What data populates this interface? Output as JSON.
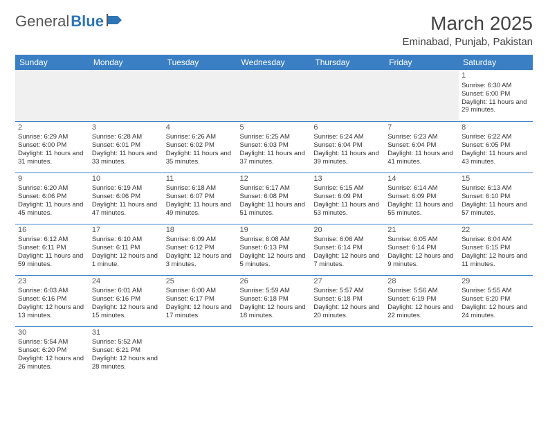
{
  "logo": {
    "text1": "General",
    "text2": "Blue"
  },
  "title": "March 2025",
  "location": "Eminabad, Punjab, Pakistan",
  "colors": {
    "header_bg": "#3a7fc4",
    "header_text": "#ffffff",
    "logo_gray": "#555555",
    "logo_blue": "#2e75b6",
    "cell_border": "#3a7fc4",
    "empty_bg": "#f0f0f0"
  },
  "day_headers": [
    "Sunday",
    "Monday",
    "Tuesday",
    "Wednesday",
    "Thursday",
    "Friday",
    "Saturday"
  ],
  "weeks": [
    [
      null,
      null,
      null,
      null,
      null,
      null,
      {
        "n": "1",
        "sr": "Sunrise: 6:30 AM",
        "ss": "Sunset: 6:00 PM",
        "dl": "Daylight: 11 hours and 29 minutes."
      }
    ],
    [
      {
        "n": "2",
        "sr": "Sunrise: 6:29 AM",
        "ss": "Sunset: 6:00 PM",
        "dl": "Daylight: 11 hours and 31 minutes."
      },
      {
        "n": "3",
        "sr": "Sunrise: 6:28 AM",
        "ss": "Sunset: 6:01 PM",
        "dl": "Daylight: 11 hours and 33 minutes."
      },
      {
        "n": "4",
        "sr": "Sunrise: 6:26 AM",
        "ss": "Sunset: 6:02 PM",
        "dl": "Daylight: 11 hours and 35 minutes."
      },
      {
        "n": "5",
        "sr": "Sunrise: 6:25 AM",
        "ss": "Sunset: 6:03 PM",
        "dl": "Daylight: 11 hours and 37 minutes."
      },
      {
        "n": "6",
        "sr": "Sunrise: 6:24 AM",
        "ss": "Sunset: 6:04 PM",
        "dl": "Daylight: 11 hours and 39 minutes."
      },
      {
        "n": "7",
        "sr": "Sunrise: 6:23 AM",
        "ss": "Sunset: 6:04 PM",
        "dl": "Daylight: 11 hours and 41 minutes."
      },
      {
        "n": "8",
        "sr": "Sunrise: 6:22 AM",
        "ss": "Sunset: 6:05 PM",
        "dl": "Daylight: 11 hours and 43 minutes."
      }
    ],
    [
      {
        "n": "9",
        "sr": "Sunrise: 6:20 AM",
        "ss": "Sunset: 6:06 PM",
        "dl": "Daylight: 11 hours and 45 minutes."
      },
      {
        "n": "10",
        "sr": "Sunrise: 6:19 AM",
        "ss": "Sunset: 6:06 PM",
        "dl": "Daylight: 11 hours and 47 minutes."
      },
      {
        "n": "11",
        "sr": "Sunrise: 6:18 AM",
        "ss": "Sunset: 6:07 PM",
        "dl": "Daylight: 11 hours and 49 minutes."
      },
      {
        "n": "12",
        "sr": "Sunrise: 6:17 AM",
        "ss": "Sunset: 6:08 PM",
        "dl": "Daylight: 11 hours and 51 minutes."
      },
      {
        "n": "13",
        "sr": "Sunrise: 6:15 AM",
        "ss": "Sunset: 6:09 PM",
        "dl": "Daylight: 11 hours and 53 minutes."
      },
      {
        "n": "14",
        "sr": "Sunrise: 6:14 AM",
        "ss": "Sunset: 6:09 PM",
        "dl": "Daylight: 11 hours and 55 minutes."
      },
      {
        "n": "15",
        "sr": "Sunrise: 6:13 AM",
        "ss": "Sunset: 6:10 PM",
        "dl": "Daylight: 11 hours and 57 minutes."
      }
    ],
    [
      {
        "n": "16",
        "sr": "Sunrise: 6:12 AM",
        "ss": "Sunset: 6:11 PM",
        "dl": "Daylight: 11 hours and 59 minutes."
      },
      {
        "n": "17",
        "sr": "Sunrise: 6:10 AM",
        "ss": "Sunset: 6:11 PM",
        "dl": "Daylight: 12 hours and 1 minute."
      },
      {
        "n": "18",
        "sr": "Sunrise: 6:09 AM",
        "ss": "Sunset: 6:12 PM",
        "dl": "Daylight: 12 hours and 3 minutes."
      },
      {
        "n": "19",
        "sr": "Sunrise: 6:08 AM",
        "ss": "Sunset: 6:13 PM",
        "dl": "Daylight: 12 hours and 5 minutes."
      },
      {
        "n": "20",
        "sr": "Sunrise: 6:06 AM",
        "ss": "Sunset: 6:14 PM",
        "dl": "Daylight: 12 hours and 7 minutes."
      },
      {
        "n": "21",
        "sr": "Sunrise: 6:05 AM",
        "ss": "Sunset: 6:14 PM",
        "dl": "Daylight: 12 hours and 9 minutes."
      },
      {
        "n": "22",
        "sr": "Sunrise: 6:04 AM",
        "ss": "Sunset: 6:15 PM",
        "dl": "Daylight: 12 hours and 11 minutes."
      }
    ],
    [
      {
        "n": "23",
        "sr": "Sunrise: 6:03 AM",
        "ss": "Sunset: 6:16 PM",
        "dl": "Daylight: 12 hours and 13 minutes."
      },
      {
        "n": "24",
        "sr": "Sunrise: 6:01 AM",
        "ss": "Sunset: 6:16 PM",
        "dl": "Daylight: 12 hours and 15 minutes."
      },
      {
        "n": "25",
        "sr": "Sunrise: 6:00 AM",
        "ss": "Sunset: 6:17 PM",
        "dl": "Daylight: 12 hours and 17 minutes."
      },
      {
        "n": "26",
        "sr": "Sunrise: 5:59 AM",
        "ss": "Sunset: 6:18 PM",
        "dl": "Daylight: 12 hours and 18 minutes."
      },
      {
        "n": "27",
        "sr": "Sunrise: 5:57 AM",
        "ss": "Sunset: 6:18 PM",
        "dl": "Daylight: 12 hours and 20 minutes."
      },
      {
        "n": "28",
        "sr": "Sunrise: 5:56 AM",
        "ss": "Sunset: 6:19 PM",
        "dl": "Daylight: 12 hours and 22 minutes."
      },
      {
        "n": "29",
        "sr": "Sunrise: 5:55 AM",
        "ss": "Sunset: 6:20 PM",
        "dl": "Daylight: 12 hours and 24 minutes."
      }
    ],
    [
      {
        "n": "30",
        "sr": "Sunrise: 5:54 AM",
        "ss": "Sunset: 6:20 PM",
        "dl": "Daylight: 12 hours and 26 minutes."
      },
      {
        "n": "31",
        "sr": "Sunrise: 5:52 AM",
        "ss": "Sunset: 6:21 PM",
        "dl": "Daylight: 12 hours and 28 minutes."
      },
      null,
      null,
      null,
      null,
      null
    ]
  ]
}
